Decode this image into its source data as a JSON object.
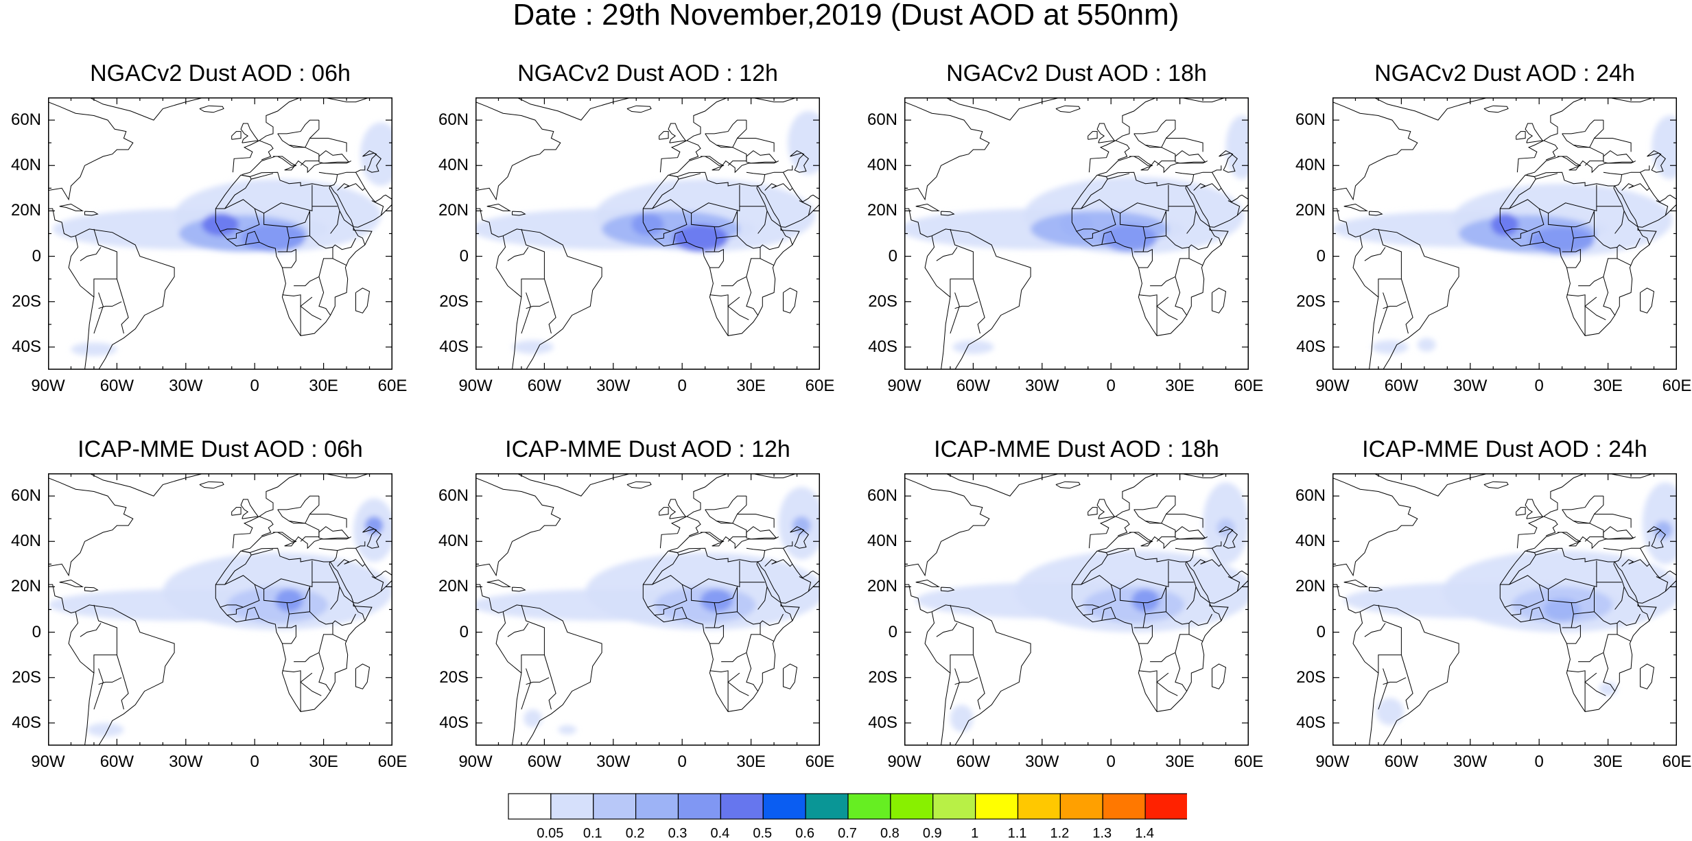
{
  "title": "Date : 29th November,2019 (Dust AOD at 550nm)",
  "panels": [
    {
      "title": "NGACv2 Dust AOD : 06h"
    },
    {
      "title": "NGACv2 Dust AOD : 12h"
    },
    {
      "title": "NGACv2 Dust AOD : 18h"
    },
    {
      "title": "NGACv2 Dust AOD : 24h"
    },
    {
      "title": "ICAP-MME Dust AOD : 06h"
    },
    {
      "title": "ICAP-MME Dust AOD : 12h"
    },
    {
      "title": "ICAP-MME Dust AOD : 18h"
    },
    {
      "title": "ICAP-MME Dust AOD : 24h"
    }
  ],
  "map_extent": {
    "lon": [
      -90,
      60
    ],
    "lat": [
      -50,
      70
    ]
  },
  "lat_ticks": [
    {
      "value": 60,
      "label": "60N"
    },
    {
      "value": 40,
      "label": "40N"
    },
    {
      "value": 20,
      "label": "20N"
    },
    {
      "value": 0,
      "label": "0"
    },
    {
      "value": -20,
      "label": "20S"
    },
    {
      "value": -40,
      "label": "40S"
    }
  ],
  "lon_ticks": [
    {
      "value": -90,
      "label": "90W"
    },
    {
      "value": -60,
      "label": "60W"
    },
    {
      "value": -30,
      "label": "30W"
    },
    {
      "value": 0,
      "label": "0"
    },
    {
      "value": 30,
      "label": "30E"
    },
    {
      "value": 60,
      "label": "60E"
    }
  ],
  "colorbar": {
    "levels": [
      "0.05",
      "0.1",
      "0.2",
      "0.3",
      "0.4",
      "0.5",
      "0.6",
      "0.7",
      "0.8",
      "0.9",
      "1",
      "1.1",
      "1.2",
      "1.3",
      "1.4"
    ],
    "colors": [
      "#ffffff",
      "#d6e0fb",
      "#b8c8f8",
      "#9db3f6",
      "#8097f3",
      "#6676ee",
      "#0a5df2",
      "#0a9696",
      "#66ee22",
      "#88f000",
      "#b8f046",
      "#ffff00",
      "#ffc800",
      "#ffa000",
      "#ff7800",
      "#ff2200"
    ]
  },
  "colors": {
    "land_outline": "#000000",
    "frame": "#000000"
  }
}
